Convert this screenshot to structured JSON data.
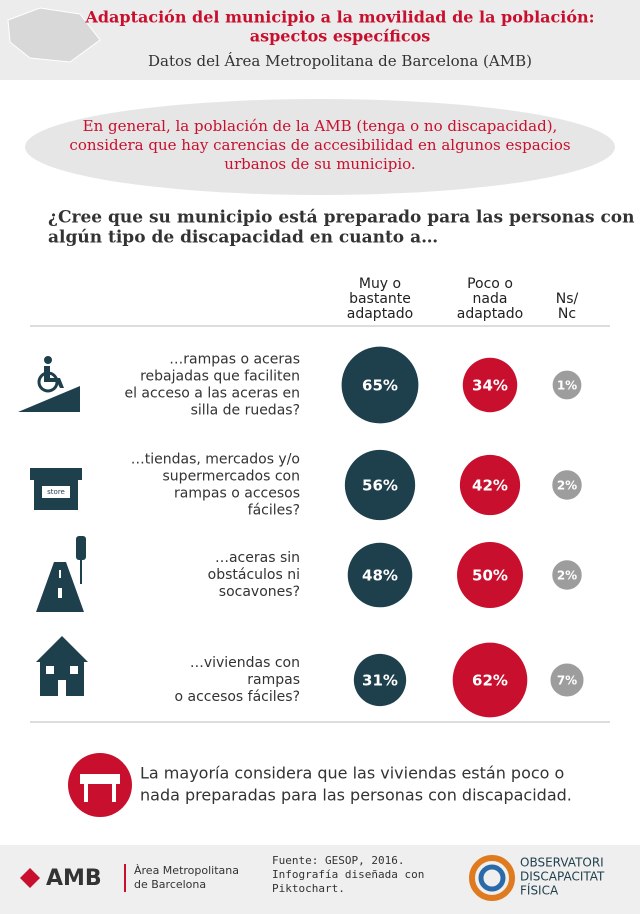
{
  "header": {
    "title_lines": [
      "Adaptación del municipio a la movilidad de la población:",
      "aspectos específicos"
    ],
    "subtitle": "Datos del Área Metropolitana de Barcelona (AMB)"
  },
  "callout": [
    "En general, la población de la AMB (tenga o no discapacidad),",
    "considera que hay carencias de accesibilidad en algunos espacios",
    "urbanos de su municipio."
  ],
  "question": [
    "¿Cree que su municipio está preparado para las personas con",
    "algún tipo de discapacidad en cuanto a…"
  ],
  "columns": [
    [
      "Muy o",
      "bastante",
      "adaptado"
    ],
    [
      "Poco o",
      "nada",
      "adaptado"
    ],
    [
      "Ns/",
      "Nc"
    ]
  ],
  "column_colors": [
    "#1e3f4c",
    "#c8102e",
    "#9d9d9d"
  ],
  "rows": [
    {
      "label": [
        "…rampas o aceras",
        "rebajadas que faciliten",
        "el acceso a las aceras en",
        "silla de ruedas?"
      ],
      "values": [
        65,
        34,
        1
      ],
      "value_labels": [
        "65%",
        "34%",
        "1%"
      ]
    },
    {
      "label": [
        "…tiendas, mercados y/o",
        "supermercados con",
        "rampas o accesos",
        "fáciles?"
      ],
      "icon_text": "store",
      "values": [
        56,
        42,
        2
      ],
      "value_labels": [
        "56%",
        "42%",
        "2%"
      ]
    },
    {
      "label": [
        "…aceras sin",
        "obstáculos ni",
        "socavones?"
      ],
      "values": [
        48,
        50,
        2
      ],
      "value_labels": [
        "48%",
        "50%",
        "2%"
      ]
    },
    {
      "label": [
        "…viviendas con",
        "rampas",
        "o accesos fáciles?"
      ],
      "values": [
        31,
        62,
        7
      ],
      "value_labels": [
        "31%",
        "62%",
        "7%"
      ]
    }
  ],
  "conclusion": [
    "La mayoría considera que las viviendas están poco o",
    "nada preparadas para las personas con discapacidad."
  ],
  "footer": {
    "logo": "AMB",
    "logo_sub": [
      "Àrea Metropolitana",
      "de Barcelona"
    ],
    "source": [
      "Fuente: GESOP, 2016.",
      "Infografía diseñada con",
      "Piktochart."
    ],
    "observatori": [
      "OBSERVATORI",
      "DISCAPACITAT",
      "FÍSICA"
    ]
  }
}
